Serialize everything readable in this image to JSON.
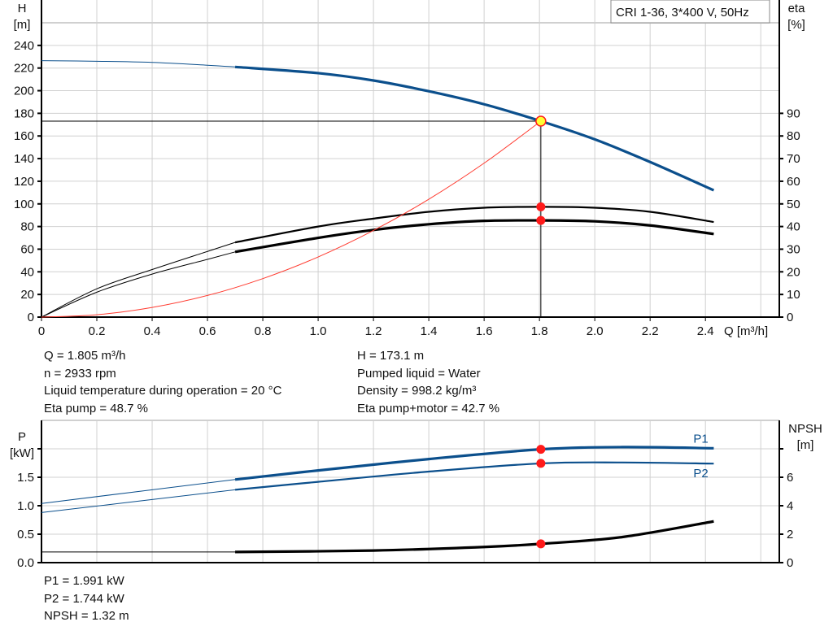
{
  "chart_data": [
    {
      "type": "line",
      "legend_box": "CRI 1-36, 3*400 V, 50Hz",
      "xlabel": "Q [m³/h]",
      "ylabel_left": [
        "H",
        "[m]"
      ],
      "ylabel_right": [
        "eta",
        "[%]"
      ],
      "xlim": [
        0,
        2.667
      ],
      "ylim_left": [
        0,
        260
      ],
      "ylim_right": [
        0,
        130
      ],
      "xticks": [
        "0",
        "0.2",
        "0.4",
        "0.6",
        "0.8",
        "1.0",
        "1.2",
        "1.4",
        "1.6",
        "1.8",
        "2.0",
        "2.2",
        "2.4"
      ],
      "yticks_left": [
        "0",
        "20",
        "40",
        "60",
        "80",
        "100",
        "120",
        "140",
        "160",
        "180",
        "200",
        "220",
        "240"
      ],
      "yticks_right": [
        "0",
        "10",
        "20",
        "30",
        "40",
        "50",
        "60",
        "70",
        "80",
        "90"
      ],
      "grid": true,
      "series": [
        {
          "key": "H",
          "axis": "left",
          "color": "#0b4f8c",
          "thin_until": 0.7,
          "x": [
            0,
            0.2,
            0.4,
            0.6,
            0.7,
            1.0,
            1.2,
            1.4,
            1.6,
            1.805,
            2.0,
            2.2,
            2.43
          ],
          "y": [
            226.5,
            226,
            225,
            222.5,
            221,
            215.5,
            209,
            199.5,
            188,
            173.1,
            157,
            137,
            112
          ]
        },
        {
          "key": "eta_pump",
          "axis": "right",
          "color": "#000000",
          "thin_until": 0.7,
          "x": [
            0,
            0.2,
            0.4,
            0.6,
            0.7,
            1.0,
            1.2,
            1.4,
            1.6,
            1.805,
            2.0,
            2.2,
            2.43
          ],
          "y": [
            0,
            12.5,
            21,
            29,
            33,
            40,
            43.5,
            46.5,
            48.3,
            48.7,
            48.3,
            46.5,
            42
          ]
        },
        {
          "key": "eta_pump_motor",
          "axis": "right",
          "color": "#000000",
          "thin_until": 0.7,
          "x": [
            0,
            0.2,
            0.4,
            0.6,
            0.7,
            1.0,
            1.2,
            1.4,
            1.6,
            1.805,
            2.0,
            2.2,
            2.43
          ],
          "y": [
            0,
            11,
            19,
            25.5,
            28.8,
            35,
            38.5,
            41,
            42.5,
            42.7,
            42.3,
            40.5,
            36.7
          ]
        },
        {
          "key": "system_curve",
          "axis": "left",
          "color": "#ff3b30",
          "thin_until": 99,
          "x": [
            0,
            0.2,
            0.4,
            0.6,
            0.8,
            1.0,
            1.2,
            1.4,
            1.6,
            1.805
          ],
          "y": [
            0,
            2.1,
            8.5,
            19.1,
            34,
            53.1,
            76.5,
            104.1,
            136,
            173.1
          ]
        }
      ],
      "duty_point": {
        "Q": 1.805,
        "H": 173.1,
        "eta_pump": 48.7,
        "eta_pump_motor": 42.7
      }
    },
    {
      "type": "line",
      "ylabel_left": [
        "P",
        "[kW]"
      ],
      "ylabel_right": [
        "NPSH",
        "[m]"
      ],
      "xlim": [
        0,
        2.667
      ],
      "ylim_left": [
        0,
        2.5
      ],
      "ylim_right": [
        0,
        10
      ],
      "yticks_left": [
        "0.0",
        "0.5",
        "1.0",
        "1.5"
      ],
      "yticks_right": [
        "0",
        "2",
        "4",
        "6"
      ],
      "grid": true,
      "series": [
        {
          "key": "P1",
          "name": "P1",
          "axis": "left",
          "color": "#0b4f8c",
          "thin_until": 0.7,
          "x": [
            0,
            0.7,
            1.0,
            1.4,
            1.805,
            2.1,
            2.43
          ],
          "y": [
            1.04,
            1.46,
            1.62,
            1.82,
            1.991,
            2.03,
            2.01
          ]
        },
        {
          "key": "P2",
          "name": "P2",
          "axis": "left",
          "color": "#0b4f8c",
          "thin_until": 0.7,
          "x": [
            0,
            0.7,
            1.0,
            1.4,
            1.805,
            2.1,
            2.43
          ],
          "y": [
            0.88,
            1.28,
            1.42,
            1.6,
            1.744,
            1.76,
            1.74
          ]
        },
        {
          "key": "NPSH",
          "axis": "right",
          "color": "#000000",
          "thin_until": 0,
          "x": [
            0.7,
            1.2,
            1.6,
            1.805,
            2.1,
            2.43
          ],
          "y": [
            0.75,
            0.85,
            1.1,
            1.32,
            1.8,
            2.9
          ]
        }
      ],
      "duty_point": {
        "Q": 1.805,
        "P1": 1.991,
        "P2": 1.744,
        "NPSH": 1.32
      }
    }
  ],
  "info_left": [
    "Q = 1.805 m³/h",
    "n = 2933 rpm",
    "Liquid temperature during operation = 20 °C",
    "Eta pump = 48.7 %"
  ],
  "info_right": [
    "H = 173.1 m",
    "Pumped liquid = Water",
    "Density = 998.2 kg/m³",
    "Eta pump+motor = 42.7 %"
  ],
  "info_bottom": [
    "P1 = 1.991 kW",
    "P2 = 1.744 kW",
    "NPSH = 1.32 m"
  ],
  "colors": {
    "grid": "#d0d0d0",
    "curve_blue": "#0b4f8c",
    "point": "#ff1a1a",
    "duty_fill": "#ffff33",
    "system": "#ff3b30"
  }
}
